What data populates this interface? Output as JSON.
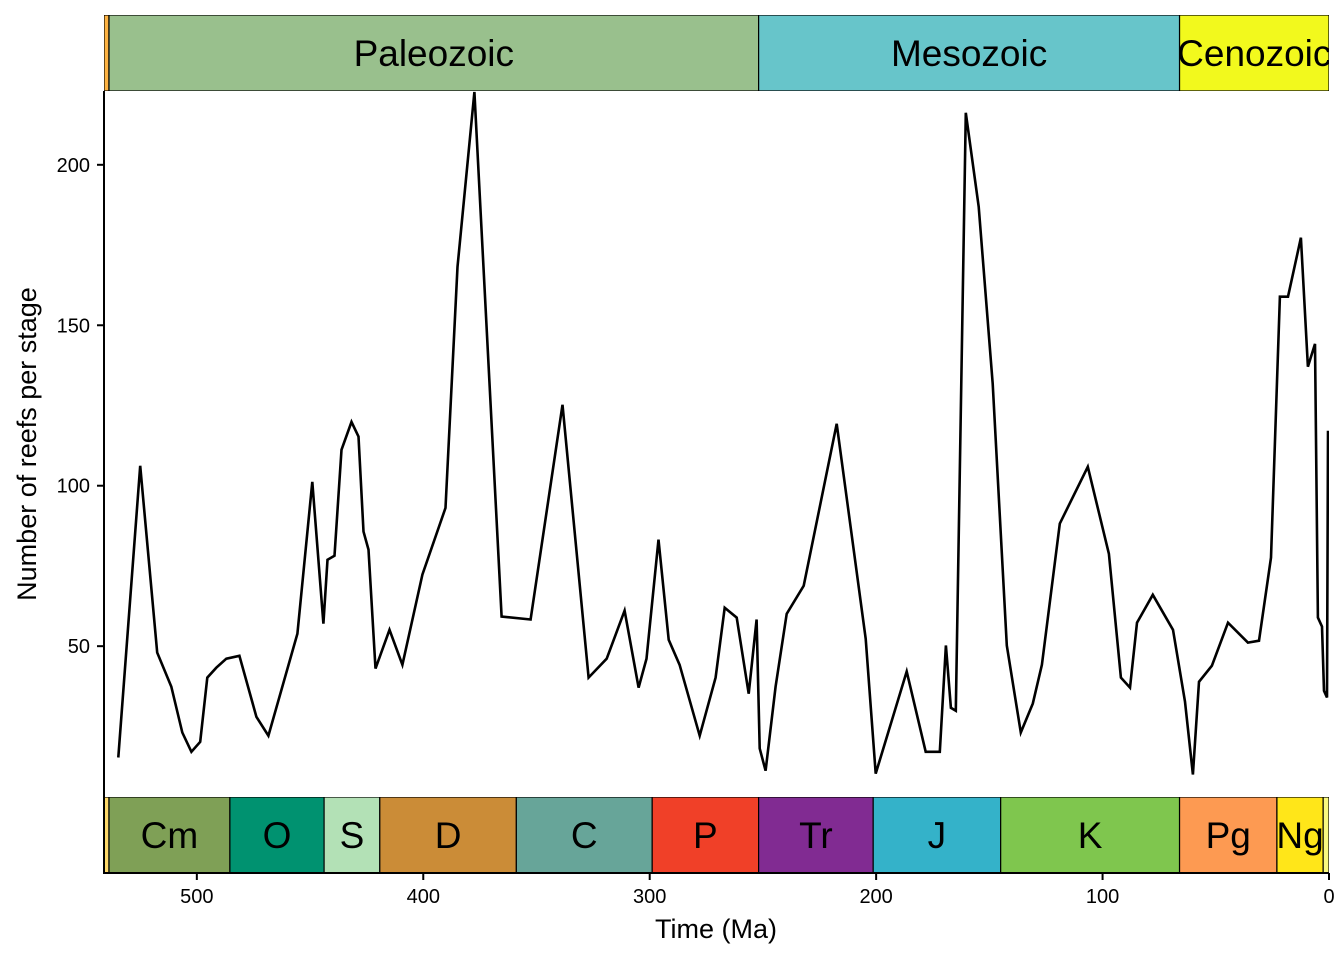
{
  "chart_data": {
    "type": "line",
    "title": "",
    "xlabel": "Time (Ma)",
    "ylabel": "Number of reefs per stage",
    "xlim": [
      541,
      0
    ],
    "ylim": [
      3,
      223
    ],
    "x_reversed": true,
    "grid": false,
    "xticks": [
      500,
      400,
      300,
      200,
      100,
      0
    ],
    "yticks": [
      50,
      100,
      150,
      200
    ],
    "line_color": "#000000",
    "series": [
      {
        "name": "reefs",
        "points": [
          [
            534.7,
            15.3
          ],
          [
            525.0,
            106.2
          ],
          [
            517.5,
            48.0
          ],
          [
            511.3,
            37.4
          ],
          [
            506.4,
            23.1
          ],
          [
            502.4,
            17.1
          ],
          [
            498.5,
            20.2
          ],
          [
            495.4,
            40.2
          ],
          [
            491.4,
            43.3
          ],
          [
            487.0,
            46.1
          ],
          [
            481.2,
            47.0
          ],
          [
            473.7,
            28.0
          ],
          [
            468.4,
            22.1
          ],
          [
            455.6,
            53.9
          ],
          [
            449.0,
            101.2
          ],
          [
            444.1,
            57.0
          ],
          [
            442.3,
            76.9
          ],
          [
            439.2,
            78.2
          ],
          [
            436.1,
            111.2
          ],
          [
            431.7,
            119.9
          ],
          [
            428.6,
            115.3
          ],
          [
            426.4,
            85.7
          ],
          [
            424.2,
            80.1
          ],
          [
            421.1,
            43.0
          ],
          [
            414.9,
            55.1
          ],
          [
            409.2,
            44.2
          ],
          [
            400.4,
            72.3
          ],
          [
            390.2,
            93.1
          ],
          [
            384.9,
            168.2
          ],
          [
            377.4,
            222.7
          ],
          [
            365.4,
            59.2
          ],
          [
            352.6,
            58.3
          ],
          [
            338.5,
            125.2
          ],
          [
            327.0,
            40.2
          ],
          [
            319.0,
            46.1
          ],
          [
            311.1,
            61.1
          ],
          [
            304.9,
            37.1
          ],
          [
            301.4,
            46.1
          ],
          [
            296.1,
            83.2
          ],
          [
            291.6,
            52.0
          ],
          [
            286.8,
            44.2
          ],
          [
            277.9,
            22.1
          ],
          [
            270.9,
            40.2
          ],
          [
            266.9,
            62.0
          ],
          [
            261.6,
            58.9
          ],
          [
            256.3,
            35.2
          ],
          [
            252.8,
            58.3
          ],
          [
            251.4,
            18.1
          ],
          [
            248.8,
            11.2
          ],
          [
            244.4,
            37.4
          ],
          [
            239.5,
            60.1
          ],
          [
            232.0,
            68.8
          ],
          [
            217.4,
            119.3
          ],
          [
            204.6,
            52.3
          ],
          [
            200.2,
            10.3
          ],
          [
            186.5,
            42.1
          ],
          [
            178.1,
            17.1
          ],
          [
            171.9,
            17.1
          ],
          [
            169.2,
            50.2
          ],
          [
            167.0,
            30.8
          ],
          [
            164.8,
            29.9
          ],
          [
            160.4,
            216.2
          ],
          [
            154.7,
            186.9
          ],
          [
            148.5,
            131.8
          ],
          [
            142.3,
            50.2
          ],
          [
            136.1,
            23.1
          ],
          [
            130.8,
            32.1
          ],
          [
            126.8,
            44.2
          ],
          [
            118.9,
            88.2
          ],
          [
            106.5,
            105.9
          ],
          [
            97.2,
            78.8
          ],
          [
            91.9,
            40.2
          ],
          [
            87.9,
            37.1
          ],
          [
            84.8,
            57.3
          ],
          [
            77.8,
            66.0
          ],
          [
            68.9,
            55.1
          ],
          [
            63.6,
            32.7
          ],
          [
            60.1,
            10.0
          ],
          [
            57.4,
            38.9
          ],
          [
            51.7,
            43.9
          ],
          [
            44.6,
            57.3
          ],
          [
            40.2,
            54.2
          ],
          [
            35.8,
            51.1
          ],
          [
            30.9,
            51.7
          ],
          [
            25.6,
            77.6
          ],
          [
            21.7,
            158.9
          ],
          [
            18.1,
            158.9
          ],
          [
            12.4,
            177.3
          ],
          [
            9.3,
            137.1
          ],
          [
            6.2,
            144.2
          ],
          [
            4.9,
            58.9
          ],
          [
            3.1,
            56.1
          ],
          [
            2.2,
            36.1
          ],
          [
            0.9,
            34.0
          ],
          [
            0.44,
            117.1
          ]
        ]
      }
    ],
    "eras": [
      {
        "name": "",
        "start": 541,
        "end": 538.8,
        "color": "#FEB342"
      },
      {
        "name": "Paleozoic",
        "start": 538.8,
        "end": 251.9,
        "color": "#99C08D"
      },
      {
        "name": "Mesozoic",
        "start": 251.9,
        "end": 66,
        "color": "#67C5CA"
      },
      {
        "name": "Cenozoic",
        "start": 66,
        "end": 0,
        "color": "#F2F91D"
      }
    ],
    "periods": [
      {
        "name": "",
        "start": 541,
        "end": 538.8,
        "color": "#FED96A",
        "text": "#000000"
      },
      {
        "name": "Cm",
        "start": 538.8,
        "end": 485.4,
        "color": "#7FA056",
        "text": "#000000"
      },
      {
        "name": "O",
        "start": 485.4,
        "end": 443.8,
        "color": "#009270",
        "text": "#FFFFFF"
      },
      {
        "name": "S",
        "start": 443.8,
        "end": 419.2,
        "color": "#B3E1B6",
        "text": "#000000"
      },
      {
        "name": "D",
        "start": 419.2,
        "end": 358.9,
        "color": "#CB8C37",
        "text": "#000000"
      },
      {
        "name": "C",
        "start": 358.9,
        "end": 298.9,
        "color": "#67A599",
        "text": "#000000"
      },
      {
        "name": "P",
        "start": 298.9,
        "end": 251.9,
        "color": "#F04028",
        "text": "#FFFFFF"
      },
      {
        "name": "Tr",
        "start": 251.9,
        "end": 201.3,
        "color": "#812B92",
        "text": "#FFFFFF"
      },
      {
        "name": "J",
        "start": 201.3,
        "end": 145,
        "color": "#34B2C9",
        "text": "#000000"
      },
      {
        "name": "K",
        "start": 145,
        "end": 66,
        "color": "#7FC64E",
        "text": "#000000"
      },
      {
        "name": "Pg",
        "start": 66,
        "end": 23,
        "color": "#FD9A52",
        "text": "#000000"
      },
      {
        "name": "Ng",
        "start": 23,
        "end": 2.58,
        "color": "#FFE619",
        "text": "#000000"
      },
      {
        "name": "",
        "start": 2.58,
        "end": 0,
        "color": "#F9F97F",
        "text": "#000000"
      }
    ]
  }
}
